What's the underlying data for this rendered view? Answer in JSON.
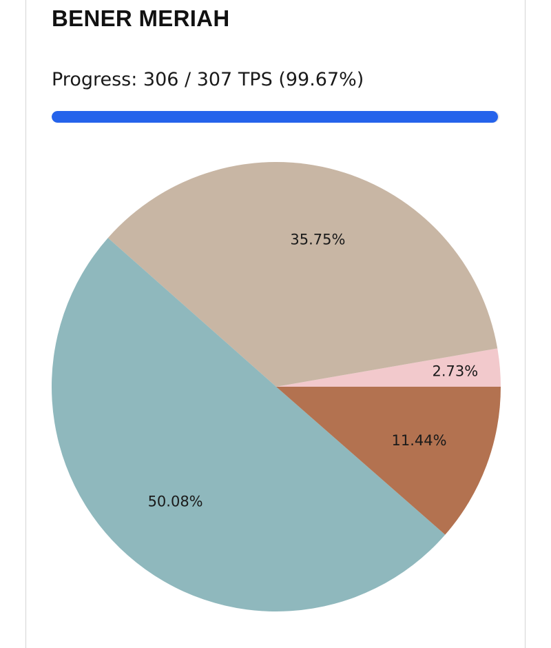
{
  "card": {
    "title": "BENER MERIAH",
    "progress_text": "Progress: 306 / 307 TPS (99.67%)",
    "progress_fraction": 0.9967,
    "progress_color": "#2563eb"
  },
  "chart_data": {
    "type": "pie",
    "title": "",
    "slices": [
      {
        "label": "2.73%",
        "value": 2.73,
        "color": "#f2c9cc"
      },
      {
        "label": "35.75%",
        "value": 35.75,
        "color": "#c8b6a4"
      },
      {
        "label": "50.08%",
        "value": 50.08,
        "color": "#8fb8bd"
      },
      {
        "label": "11.44%",
        "value": 11.44,
        "color": "#b37250"
      }
    ],
    "start_angle_deg": 0,
    "direction": "counterclockwise",
    "legend": "none"
  }
}
